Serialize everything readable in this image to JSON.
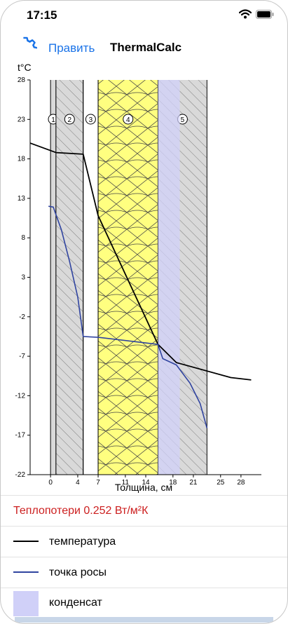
{
  "status_bar": {
    "time": "17:15"
  },
  "nav": {
    "edit_label": "Править",
    "title": "ThermalCalc"
  },
  "chart_data": {
    "type": "line",
    "ylabel": "t°C",
    "xlabel": "Толщина, см",
    "ylim": [
      -22,
      28
    ],
    "yticks": [
      28,
      23,
      18,
      13,
      8,
      3,
      -2,
      -7,
      -12,
      -17,
      -22
    ],
    "xticks": [
      0,
      4,
      7,
      11,
      14,
      18,
      21,
      25,
      28
    ],
    "x_range": [
      -3,
      31
    ],
    "layers": [
      {
        "id": "1",
        "start": 0,
        "end": 0.8,
        "style": "plain",
        "color": "#d9d9d9"
      },
      {
        "id": "2",
        "start": 0.8,
        "end": 4.8,
        "style": "hatch",
        "color": "#d9d9d9"
      },
      {
        "id": "3",
        "start": 4.8,
        "end": 7,
        "style": "none",
        "color": "#ffffff"
      },
      {
        "id": "4",
        "start": 7,
        "end": 15.8,
        "style": "wool",
        "color": "#ffff80"
      },
      {
        "id": "5",
        "start": 15.8,
        "end": 23,
        "style": "hatch",
        "color": "#d9d9d9"
      }
    ],
    "condensation_zone": [
      15.8,
      19
    ],
    "series": [
      {
        "name": "температура",
        "color": "#000000",
        "x": [
          -3,
          0.8,
          4.8,
          7,
          15.8,
          18.5,
          26.5,
          29.5
        ],
        "y": [
          20,
          18.8,
          18.6,
          10.8,
          -5.5,
          -7.8,
          -9.7,
          -10
        ]
      },
      {
        "name": "точка росы",
        "color": "#3044a0",
        "x": [
          -0.3,
          0.4,
          1.6,
          2.8,
          4.0,
          4.8,
          7,
          15.8,
          16.5,
          18.5,
          20.5,
          22,
          23
        ],
        "y": [
          12,
          11.9,
          9.0,
          5.0,
          0.5,
          -4.5,
          -4.6,
          -5.5,
          -7.3,
          -8.1,
          -10.4,
          -13.0,
          -16.1
        ]
      }
    ]
  },
  "heat_loss": "Теплопотери 0.252 Вт/м²К",
  "legend": {
    "temperature": "температура",
    "dew_point": "точка росы",
    "condensate": "конденсат"
  },
  "colors": {
    "temperature_line": "#000000",
    "dew_point_line": "#3044a0",
    "condensate": "#d0d0f8",
    "accent": "#1a73e8",
    "heat_loss": "#cc1f1f"
  }
}
